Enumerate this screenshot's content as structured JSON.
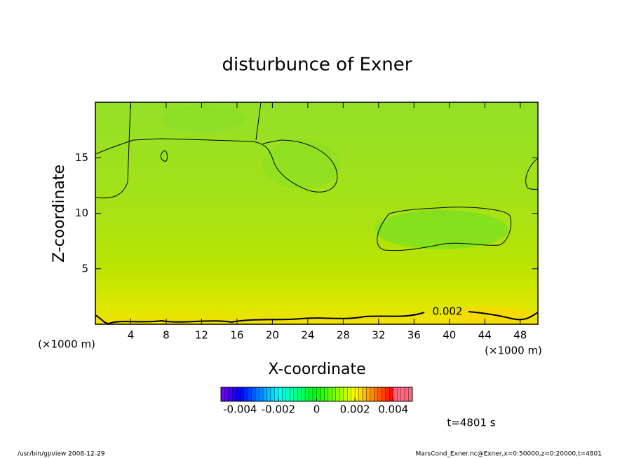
{
  "chart_data": {
    "type": "contour",
    "title": "disturbunce of Exner",
    "xlabel": "X-coordinate",
    "ylabel": "Z-coordinate",
    "yunits": "(×1000 m)",
    "xunits": "(×1000 m)",
    "xlim": [
      0,
      50
    ],
    "xticks": [
      4,
      8,
      12,
      16,
      20,
      24,
      28,
      32,
      36,
      40,
      44,
      48
    ],
    "ylim": [
      0,
      20
    ],
    "yticks": [
      5,
      10,
      15
    ],
    "contour_labels": [
      0.002
    ],
    "colorbar": {
      "lim": [
        -0.005,
        0.005
      ],
      "ticks": [
        -0.004,
        -0.002,
        0,
        0.002,
        0.004
      ]
    },
    "annotation": "t=4801 s",
    "footer_left": "/usr/bin/gpview   2008-12-29",
    "footer_right": "MarsCond_Exner.nc@Exner,x=0:50000,z=0:20000,t=4801"
  }
}
